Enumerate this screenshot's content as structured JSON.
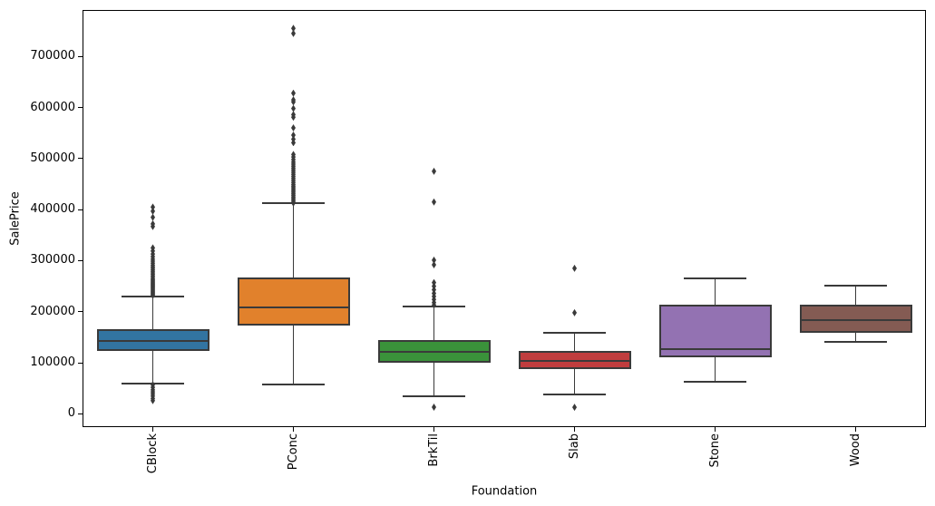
{
  "figure": {
    "background": "#ffffff"
  },
  "chart_data": {
    "type": "boxplot",
    "title": "",
    "xlabel": "Foundation",
    "ylabel": "SalePrice",
    "categories": [
      "CBlock",
      "PConc",
      "BrkTil",
      "Slab",
      "Stone",
      "Wood"
    ],
    "ylim": [
      -26000,
      791000
    ],
    "y_ticks": [
      0,
      100000,
      200000,
      300000,
      400000,
      500000,
      600000,
      700000
    ],
    "grid": false,
    "legend_position": "none",
    "x_tick_rotation_deg": 90,
    "palette": [
      "#3274a1",
      "#e1812c",
      "#3a923a",
      "#c03d3e",
      "#9372b2",
      "#845b53"
    ],
    "line_color": "#3a3a3a",
    "spine_color": "#000000",
    "flier_marker": "diamond",
    "series": [
      {
        "name": "CBlock",
        "whislo": 60000,
        "q1": 122500,
        "med": 142500,
        "q3": 166500,
        "whishi": 230500,
        "fliers": [
          405000,
          397000,
          385000,
          372000,
          367000,
          325000,
          319000,
          313000,
          308000,
          303000,
          299000,
          295000,
          291000,
          288000,
          285000,
          282000,
          279000,
          276000,
          273000,
          270000,
          267000,
          264000,
          262000,
          260000,
          258000,
          256000,
          254000,
          252000,
          250000,
          248000,
          246000,
          244000,
          242000,
          240000,
          238000,
          236000,
          234000,
          232000,
          57000,
          52000,
          47000,
          43000,
          39000,
          34900,
          30000,
          26000
        ]
      },
      {
        "name": "PConc",
        "whislo": 57500,
        "q1": 172500,
        "med": 209000,
        "q3": 267500,
        "whishi": 412000,
        "fliers": [
          755000,
          745000,
          628000,
          615000,
          611000,
          598000,
          586000,
          581000,
          560000,
          546000,
          538000,
          531000,
          508000,
          503000,
          498000,
          493000,
          489000,
          485000,
          481000,
          477000,
          473000,
          469000,
          465000,
          461000,
          457000,
          453000,
          449000,
          446000,
          443000,
          440000,
          437000,
          434000,
          431000,
          428000,
          425000,
          422000,
          419000,
          416000,
          413000
        ]
      },
      {
        "name": "BrkTil",
        "whislo": 35000,
        "q1": 100000,
        "med": 121000,
        "q3": 144500,
        "whishi": 210000,
        "fliers": [
          475000,
          415000,
          301000,
          292000,
          257000,
          250000,
          243000,
          236000,
          230000,
          224000,
          218000,
          213000,
          13100
        ]
      },
      {
        "name": "Slab",
        "whislo": 38000,
        "q1": 88500,
        "med": 103000,
        "q3": 122500,
        "whishi": 159500,
        "fliers": [
          285000,
          198000,
          12789
        ]
      },
      {
        "name": "Stone",
        "whislo": 63500,
        "q1": 110000,
        "med": 127000,
        "q3": 214500,
        "whishi": 266000,
        "fliers": []
      },
      {
        "name": "Wood",
        "whislo": 141500,
        "q1": 158000,
        "med": 183000,
        "q3": 214000,
        "whishi": 251000,
        "fliers": []
      }
    ]
  }
}
